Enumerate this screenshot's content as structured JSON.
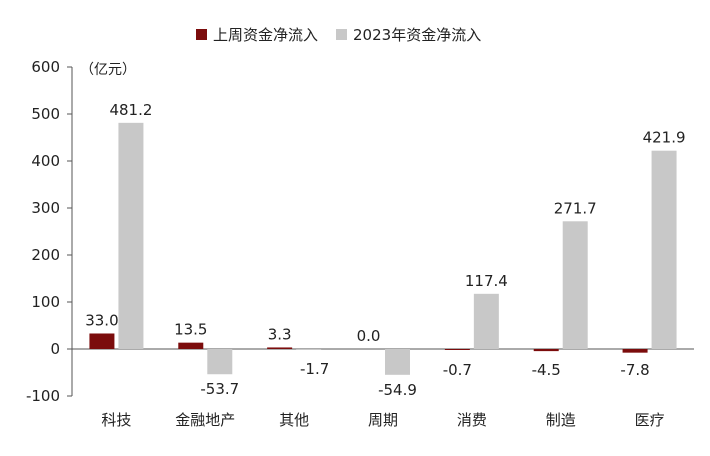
{
  "chart_data": {
    "type": "bar",
    "unit": "（亿元）",
    "categories": [
      "科技",
      "金融地产",
      "其他",
      "周期",
      "消费",
      "制造",
      "医疗"
    ],
    "series": [
      {
        "name": "上周资金净流入",
        "color": "#7b0c0c",
        "values": [
          33.0,
          13.5,
          3.3,
          0.0,
          -0.7,
          -4.5,
          -7.8
        ],
        "labels": [
          "33.0",
          "13.5",
          "3.3",
          "0.0",
          "-0.7",
          "-4.5",
          "-7.8"
        ]
      },
      {
        "name": "2023年资金净流入",
        "color": "#c8c8c8",
        "values": [
          481.2,
          -53.7,
          -1.7,
          -54.9,
          117.4,
          271.7,
          421.9
        ],
        "labels": [
          "481.2",
          "-53.7",
          "-1.7",
          "-54.9",
          "117.4",
          "271.7",
          "421.9"
        ]
      }
    ],
    "ylim": [
      -100,
      600
    ],
    "yticks": [
      "-100",
      "0",
      "100",
      "200",
      "300",
      "400",
      "500",
      "600"
    ],
    "legend": "top"
  }
}
